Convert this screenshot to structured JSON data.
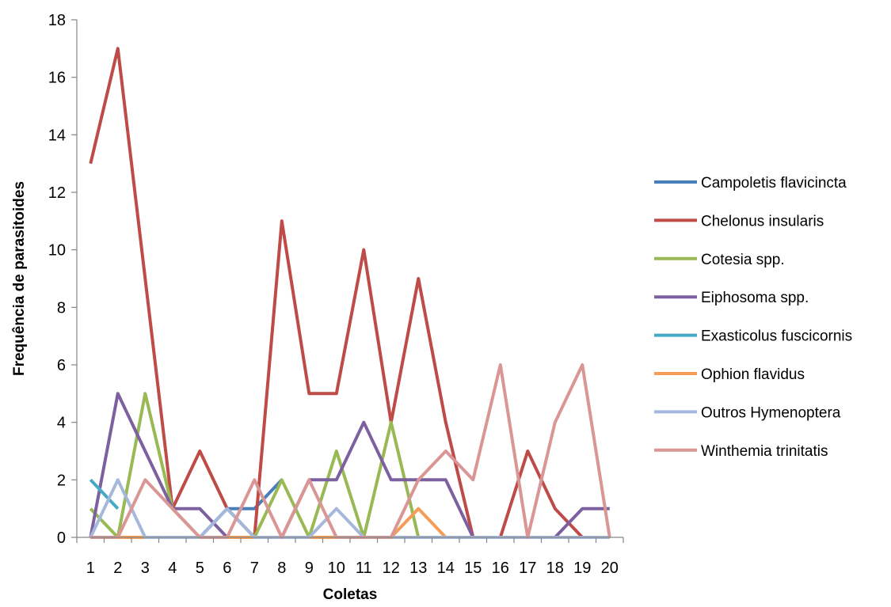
{
  "chart_data": {
    "type": "line",
    "title": "",
    "xlabel": "Coletas",
    "ylabel": "Frequência  de parasitoides",
    "x": [
      1,
      2,
      3,
      4,
      5,
      6,
      7,
      8,
      9,
      10,
      11,
      12,
      13,
      14,
      15,
      16,
      17,
      18,
      19,
      20
    ],
    "ylim": [
      0,
      18
    ],
    "yticks": [
      0,
      2,
      4,
      6,
      8,
      10,
      12,
      14,
      16,
      18
    ],
    "grid": false,
    "legend_position": "right",
    "series": [
      {
        "name": "Campoletis flavicincta",
        "color": "#4a7ebb",
        "values": [
          0,
          0,
          0,
          0,
          0,
          1,
          1,
          2,
          null,
          null,
          null,
          null,
          null,
          null,
          null,
          null,
          null,
          null,
          null,
          null
        ]
      },
      {
        "name": "Chelonus insularis",
        "color": "#be4b48",
        "values": [
          13,
          17,
          9,
          1,
          3,
          1,
          0,
          11,
          5,
          5,
          10,
          4,
          9,
          4,
          0,
          0,
          3,
          1,
          0,
          null
        ]
      },
      {
        "name": "Cotesia spp.",
        "color": "#98b954",
        "values": [
          1,
          0,
          5,
          1,
          0,
          0,
          0,
          2,
          0,
          3,
          0,
          4,
          0,
          0,
          0,
          0,
          0,
          0,
          0,
          0
        ]
      },
      {
        "name": "Eiphosoma spp.",
        "color": "#7d60a0",
        "values": [
          0,
          5,
          3,
          1,
          1,
          0,
          0,
          0,
          2,
          2,
          4,
          2,
          2,
          2,
          0,
          0,
          0,
          0,
          1,
          1
        ]
      },
      {
        "name": "Exasticolus fuscicornis",
        "color": "#46aac5",
        "values": [
          2,
          1,
          null,
          null,
          null,
          null,
          null,
          null,
          null,
          null,
          null,
          null,
          null,
          null,
          null,
          null,
          null,
          null,
          null,
          null
        ]
      },
      {
        "name": "Ophion flavidus",
        "color": "#f59d56",
        "values": [
          0,
          0,
          0,
          0,
          0,
          0,
          0,
          0,
          0,
          0,
          0,
          0,
          1,
          0,
          0,
          0,
          0,
          0,
          0,
          0
        ]
      },
      {
        "name": "Outros Hymenoptera",
        "color": "#a5b8dc",
        "values": [
          0,
          2,
          0,
          0,
          0,
          1,
          0,
          0,
          0,
          1,
          0,
          0,
          0,
          0,
          0,
          0,
          0,
          0,
          0,
          0
        ]
      },
      {
        "name": "Winthemia trinitatis",
        "color": "#d99694",
        "values": [
          0,
          0,
          2,
          1,
          0,
          0,
          2,
          0,
          2,
          0,
          0,
          0,
          2,
          3,
          2,
          6,
          0,
          4,
          6,
          0
        ]
      }
    ]
  }
}
